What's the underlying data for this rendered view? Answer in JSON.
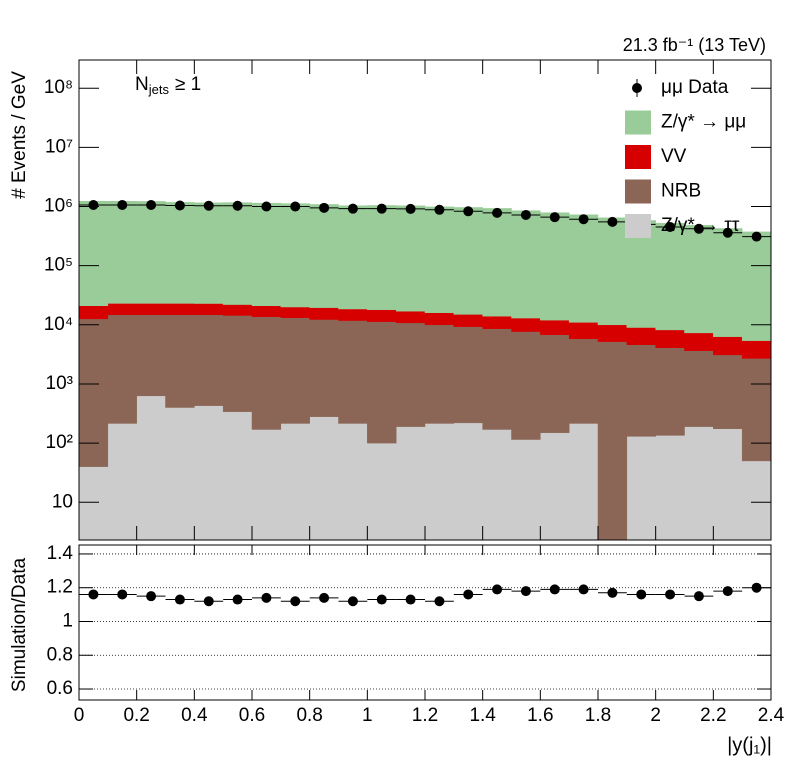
{
  "chart_data": [
    {
      "type": "stacked_histogram",
      "lumi_label": "21.3 fb⁻¹ (13 TeV)",
      "annotation": [
        "N",
        "jets",
        "≥ 1"
      ],
      "ylabel": "# Events / GeV",
      "log_y": true,
      "legend": "top-right",
      "bins": [
        0,
        0.1,
        0.2,
        0.3,
        0.4,
        0.5,
        0.6,
        0.7,
        0.8,
        0.9,
        1.0,
        1.1,
        1.2,
        1.3,
        1.4,
        1.5,
        1.6,
        1.7,
        1.8,
        1.9,
        2.0,
        2.1,
        2.2,
        2.3,
        2.4
      ],
      "ylim": [
        2.3,
        300000000
      ],
      "yticks": [
        10,
        {
          "value": 100,
          "label": "10²"
        },
        {
          "value": 1000,
          "label": "10³"
        },
        {
          "value": 10000,
          "label": "10⁴"
        },
        {
          "value": 100000,
          "label": "10⁵"
        },
        {
          "value": 1000000,
          "label": "10⁶"
        },
        {
          "value": 10000000,
          "label": "10⁷"
        },
        {
          "value": 100000000,
          "label": "10⁸"
        }
      ],
      "series": [
        {
          "name": "Z/γ* → ττ",
          "color": "#cccccc",
          "values": [
            40,
            215,
            630,
            400,
            430,
            340,
            170,
            215,
            280,
            215,
            100,
            190,
            215,
            220,
            170,
            115,
            150,
            215,
            0,
            130,
            135,
            190,
            175,
            50
          ]
        },
        {
          "name": "NRB",
          "color": "#8b6656",
          "values": [
            12560,
            14585,
            14170,
            14400,
            14370,
            14060,
            13530,
            12985,
            12020,
            11585,
            11200,
            10610,
            9785,
            9080,
            8430,
            7585,
            6650,
            5585,
            5200,
            4470,
            3965,
            3460,
            2925,
            2650
          ]
        },
        {
          "name": "VV",
          "color": "#d60000",
          "values": [
            8400,
            8200,
            8200,
            8200,
            8100,
            7600,
            7300,
            6800,
            7200,
            6700,
            6700,
            6200,
            6000,
            5700,
            5400,
            5300,
            5200,
            5200,
            4800,
            4400,
            4100,
            3650,
            3200,
            2700
          ]
        },
        {
          "name": "Z/γ* → μμ",
          "color": "#99cc99",
          "values": [
            1209000,
            1205000,
            1196000,
            1150000,
            1131000,
            1142000,
            1119000,
            1100000,
            1063000,
            1012000,
            1022000,
            1011000,
            970000,
            948000,
            914000,
            837000,
            773000,
            715000,
            634000,
            571000,
            514000,
            476000,
            419000,
            367000
          ]
        }
      ],
      "data": {
        "name": "μμ Data",
        "color": "#000000",
        "values": [
          1060000,
          1060000,
          1060000,
          1040000,
          1030000,
          1030000,
          1000000,
          1000000,
          950000,
          920000,
          920000,
          910000,
          880000,
          830000,
          780000,
          720000,
          660000,
          610000,
          550000,
          500000,
          450000,
          420000,
          360000,
          310000
        ]
      }
    },
    {
      "type": "ratio",
      "ylabel": "Simulation/Data",
      "xlabel": "|y(j₁)|",
      "x": [
        0.05,
        0.15,
        0.25,
        0.35,
        0.45,
        0.55,
        0.65,
        0.75,
        0.85,
        0.95,
        1.05,
        1.15,
        1.25,
        1.35,
        1.45,
        1.55,
        1.65,
        1.75,
        1.85,
        1.95,
        2.05,
        2.15,
        2.25,
        2.35
      ],
      "values": [
        1.16,
        1.16,
        1.15,
        1.13,
        1.12,
        1.13,
        1.14,
        1.12,
        1.14,
        1.12,
        1.13,
        1.13,
        1.12,
        1.16,
        1.19,
        1.18,
        1.19,
        1.19,
        1.17,
        1.16,
        1.16,
        1.15,
        1.18,
        1.2
      ],
      "color": "#000000",
      "xlim": [
        0,
        2.4
      ],
      "ylim": [
        0.535,
        1.453
      ],
      "xticks": [
        0,
        0.2,
        0.4,
        0.6,
        0.8,
        1,
        1.2,
        1.4,
        1.6,
        1.8,
        2,
        2.2,
        2.4
      ],
      "yticks": [
        0.6,
        0.8,
        1,
        1.2,
        1.4
      ],
      "grid": true
    }
  ]
}
